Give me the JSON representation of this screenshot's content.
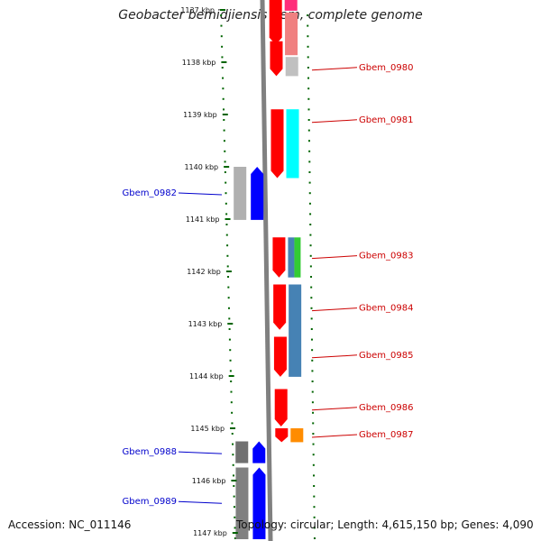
{
  "header": {
    "title": "Geobacter bemidjiensis Bem, complete genome"
  },
  "ruler": [
    {
      "label": "1137 kbp",
      "pos": 1137.0
    },
    {
      "label": "1138 kbp",
      "pos": 1138.0
    },
    {
      "label": "1139 kbp",
      "pos": 1139.0
    },
    {
      "label": "1140 kbp",
      "pos": 1140.0
    },
    {
      "label": "1141 kbp",
      "pos": 1141.0
    },
    {
      "label": "1142 kbp",
      "pos": 1142.0
    },
    {
      "label": "1143 kbp",
      "pos": 1143.0
    },
    {
      "label": "1144 kbp",
      "pos": 1144.0
    },
    {
      "label": "1145 kbp",
      "pos": 1145.0
    },
    {
      "label": "1146 kbp",
      "pos": 1146.0
    },
    {
      "label": "1147 kbp",
      "pos": 1147.0
    }
  ],
  "genes": [
    {
      "name": "",
      "strand": "+",
      "start": 1136.6,
      "end": 1137.7,
      "color": "#ff0000",
      "label_at": null
    },
    {
      "name": "Gbem_0980",
      "strand": "+",
      "start": 1137.6,
      "end": 1138.3,
      "color": "#ff0000",
      "label_at": 1138.1
    },
    {
      "name": "Gbem_0981",
      "strand": "+",
      "start": 1138.9,
      "end": 1140.25,
      "color": "#ff0000",
      "label_at": 1139.1
    },
    {
      "name": "Gbem_0982",
      "strand": "-",
      "start": 1140.0,
      "end": 1141.05,
      "color": "#0000ff",
      "label_at": 1140.5
    },
    {
      "name": "Gbem_0983",
      "strand": "+",
      "start": 1141.35,
      "end": 1142.15,
      "color": "#ff0000",
      "label_at": 1141.7
    },
    {
      "name": "Gbem_0984",
      "strand": "+",
      "start": 1142.25,
      "end": 1143.15,
      "color": "#ff0000",
      "label_at": 1142.7
    },
    {
      "name": "Gbem_0985",
      "strand": "+",
      "start": 1143.25,
      "end": 1144.05,
      "color": "#ff0000",
      "label_at": 1143.6
    },
    {
      "name": "Gbem_0986",
      "strand": "+",
      "start": 1144.25,
      "end": 1145.0,
      "color": "#ff0000",
      "label_at": 1144.6
    },
    {
      "name": "Gbem_0987",
      "strand": "+",
      "start": 1145.0,
      "end": 1145.3,
      "color": "#ff0000",
      "label_at": 1145.12
    },
    {
      "name": "Gbem_0988",
      "strand": "-",
      "start": 1145.25,
      "end": 1145.7,
      "color": "#0000ff",
      "label_at": 1145.45
    },
    {
      "name": "Gbem_0989",
      "strand": "-",
      "start": 1145.75,
      "end": 1147.3,
      "color": "#0000ff",
      "label_at": 1146.4
    }
  ],
  "features": [
    {
      "track": "plus",
      "start": 1136.6,
      "end": 1137.05,
      "color": "#ff2d7a"
    },
    {
      "track": "plus",
      "start": 1137.05,
      "end": 1137.9,
      "color": "#f08080"
    },
    {
      "track": "plus",
      "start": 1137.9,
      "end": 1138.3,
      "color": "#c0c0c0"
    },
    {
      "track": "plus",
      "start": 1138.9,
      "end": 1140.25,
      "color": "#00ffff"
    },
    {
      "track": "plus",
      "start": 1141.35,
      "end": 1142.15,
      "color": "#4682b4",
      "width": "half"
    },
    {
      "track": "plus",
      "start": 1141.35,
      "end": 1142.15,
      "color": "#33cc33",
      "width": "half2"
    },
    {
      "track": "plus",
      "start": 1142.25,
      "end": 1144.05,
      "color": "#4682b4"
    },
    {
      "track": "plus",
      "start": 1145.0,
      "end": 1145.3,
      "color": "#ff8c00"
    },
    {
      "track": "minus",
      "start": 1140.0,
      "end": 1141.05,
      "color": "#b0b0b0"
    },
    {
      "track": "minus",
      "start": 1145.25,
      "end": 1145.7,
      "color": "#707070"
    },
    {
      "track": "minus",
      "start": 1145.75,
      "end": 1147.3,
      "color": "#808080"
    }
  ],
  "colors": {
    "plus_label": "#cc0000",
    "minus_label": "#0000cc",
    "tick": "#006400",
    "backbone": "#808080"
  },
  "footer": {
    "accession": "Accession: NC_011146",
    "topology": "Topology: circular; Length: 4,615,150 bp; Genes: 4,090"
  }
}
